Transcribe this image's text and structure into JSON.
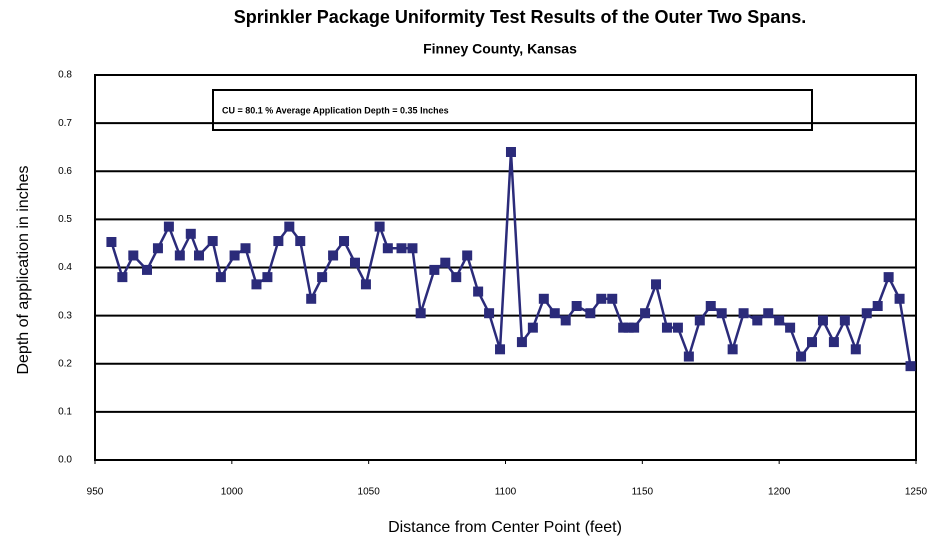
{
  "chart_data": {
    "type": "line",
    "title": "Sprinkler Package Uniformity Test Results of the Outer Two Spans.",
    "subtitle": "Finney County, Kansas",
    "annotation": "CU = 80.1 %   Average Application Depth = 0.35 Inches",
    "xlabel": "Distance from Center Point  (feet)",
    "ylabel": "Depth of application in inches",
    "x": [
      956,
      960,
      964,
      969,
      973,
      977,
      981,
      985,
      988,
      993,
      996,
      1001,
      1005,
      1009,
      1013,
      1017,
      1021,
      1025,
      1029,
      1033,
      1037,
      1041,
      1045,
      1049,
      1054,
      1057,
      1062,
      1066,
      1069,
      1074,
      1078,
      1082,
      1086,
      1090,
      1094,
      1098,
      1102,
      1106,
      1110,
      1114,
      1118,
      1122,
      1126,
      1131,
      1135,
      1139,
      1143,
      1145,
      1147,
      1151,
      1155,
      1159,
      1163,
      1167,
      1171,
      1175,
      1179,
      1183,
      1187,
      1192,
      1196,
      1200,
      1204,
      1208,
      1212,
      1216,
      1220,
      1224,
      1228,
      1232,
      1236,
      1240,
      1244,
      1248
    ],
    "series": [
      {
        "color": "#2b2b7a",
        "values": [
          0.453,
          0.38,
          0.425,
          0.395,
          0.44,
          0.485,
          0.425,
          0.47,
          0.425,
          0.455,
          0.38,
          0.425,
          0.44,
          0.365,
          0.38,
          0.455,
          0.485,
          0.455,
          0.335,
          0.38,
          0.425,
          0.455,
          0.41,
          0.365,
          0.485,
          0.44,
          0.44,
          0.44,
          0.305,
          0.395,
          0.41,
          0.38,
          0.425,
          0.35,
          0.305,
          0.23,
          0.64,
          0.245,
          0.275,
          0.335,
          0.305,
          0.29,
          0.32,
          0.305,
          0.335,
          0.335,
          0.275,
          0.275,
          0.275,
          0.305,
          0.365,
          0.275,
          0.275,
          0.215,
          0.29,
          0.32,
          0.305,
          0.23,
          0.305,
          0.29,
          0.305,
          0.29,
          0.275,
          0.215,
          0.245,
          0.29,
          0.245,
          0.29,
          0.23,
          0.305,
          0.32,
          0.38,
          0.335,
          0.195
        ]
      }
    ],
    "xlim": [
      950,
      1250
    ],
    "xticks": [
      950,
      1000,
      1050,
      1100,
      1150,
      1200,
      1250
    ],
    "ylim": [
      0,
      0.8
    ],
    "yticks": [
      {
        "value": 0,
        "label": "0.0"
      },
      0.1,
      0.2,
      0.3,
      0.4,
      0.5,
      0.6,
      0.7,
      0.8
    ],
    "grid": true
  }
}
